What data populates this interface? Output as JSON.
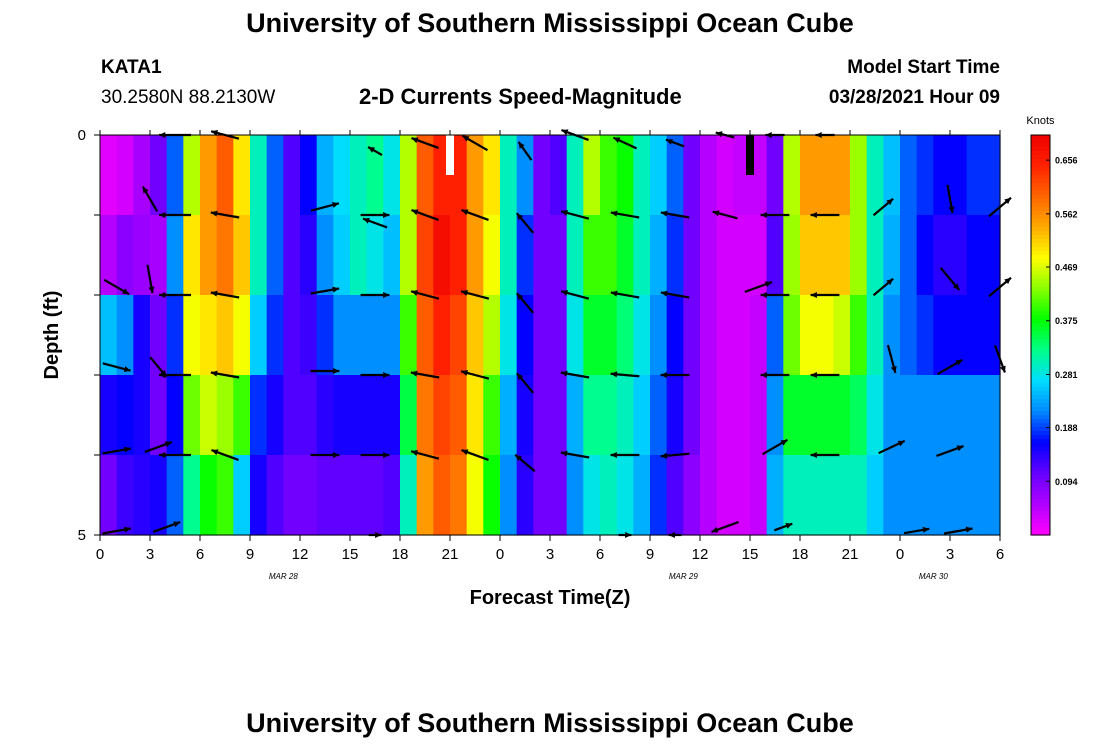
{
  "header": {
    "title": "University of Southern Mississippi Ocean Cube",
    "station": "KATA1",
    "coords": "30.2580N  88.2130W",
    "subtitle": "2-D Currents Speed-Magnitude",
    "model_label": "Model Start Time",
    "model_time": "03/28/2021 Hour 09"
  },
  "footer": {
    "title": "University of Southern Mississippi Ocean Cube"
  },
  "chart_data": {
    "type": "heatmap",
    "title": "2-D Currents Speed-Magnitude",
    "xlabel": "Forecast Time(Z)",
    "ylabel": "Depth (ft)",
    "ylim": [
      0,
      5
    ],
    "y_ticks": [
      "0",
      "5"
    ],
    "x_ticks": [
      "0",
      "3",
      "6",
      "9",
      "12",
      "15",
      "18",
      "21",
      "0",
      "3",
      "6",
      "9",
      "12",
      "15",
      "18",
      "21",
      "0",
      "3",
      "6"
    ],
    "date_labels": [
      {
        "label": "MAR 28",
        "hour_index": 11
      },
      {
        "label": "MAR 29",
        "hour_index": 35
      },
      {
        "label": "MAR 30",
        "hour_index": 50
      }
    ],
    "hours": 54,
    "depth_levels": [
      0.5,
      1.5,
      2.5,
      3.5,
      4.5
    ],
    "colorbar": {
      "unit": "Knots",
      "min": 0.0,
      "max": 0.7,
      "tick_values": [
        0.656,
        0.562,
        0.469,
        0.375,
        0.281,
        0.188,
        0.094
      ],
      "tick_labels": [
        "0.656",
        "0.562",
        "0.469",
        "0.375",
        "0.281",
        "0.188",
        "0.094"
      ],
      "colors": [
        "#ff00ff",
        "#b000ff",
        "#6600ff",
        "#0000ff",
        "#0088ff",
        "#00ddff",
        "#00ff88",
        "#00ff00",
        "#88ff00",
        "#ffff00",
        "#ffaa00",
        "#ff6600",
        "#ff2200",
        "#ee0000"
      ]
    },
    "speed_profiles": [
      [
        0.02,
        0.03,
        0.06,
        0.1,
        0.2,
        0.45,
        0.55,
        0.6,
        0.5,
        0.3,
        0.2,
        0.12,
        0.16,
        0.24,
        0.27,
        0.3,
        0.32,
        0.28,
        0.45,
        0.6,
        0.65,
        0.65,
        0.55,
        0.5,
        0.3,
        0.22,
        0.1,
        0.12,
        0.3,
        0.45,
        0.4,
        0.38,
        0.3,
        0.26,
        0.2,
        0.1,
        0.05,
        0.03,
        0.04,
        0.04,
        0.1,
        0.45,
        0.55,
        0.55,
        0.55,
        0.44,
        0.3,
        0.25,
        0.2,
        0.18,
        0.16,
        0.16,
        0.18,
        0.18
      ],
      [
        0.05,
        0.08,
        0.07,
        0.06,
        0.22,
        0.5,
        0.55,
        0.58,
        0.52,
        0.3,
        0.2,
        0.12,
        0.14,
        0.22,
        0.26,
        0.3,
        0.28,
        0.25,
        0.45,
        0.62,
        0.68,
        0.65,
        0.55,
        0.48,
        0.3,
        0.18,
        0.1,
        0.1,
        0.3,
        0.4,
        0.4,
        0.36,
        0.3,
        0.24,
        0.18,
        0.1,
        0.05,
        0.03,
        0.03,
        0.03,
        0.12,
        0.44,
        0.52,
        0.52,
        0.52,
        0.44,
        0.3,
        0.24,
        0.2,
        0.16,
        0.14,
        0.14,
        0.16,
        0.16
      ],
      [
        0.25,
        0.22,
        0.15,
        0.1,
        0.18,
        0.48,
        0.5,
        0.52,
        0.48,
        0.26,
        0.18,
        0.12,
        0.13,
        0.18,
        0.22,
        0.22,
        0.22,
        0.22,
        0.4,
        0.6,
        0.65,
        0.62,
        0.52,
        0.45,
        0.28,
        0.16,
        0.1,
        0.1,
        0.28,
        0.36,
        0.36,
        0.33,
        0.28,
        0.22,
        0.16,
        0.1,
        0.05,
        0.03,
        0.03,
        0.04,
        0.2,
        0.42,
        0.48,
        0.48,
        0.46,
        0.4,
        0.3,
        0.22,
        0.2,
        0.18,
        0.16,
        0.16,
        0.16,
        0.16
      ],
      [
        0.15,
        0.16,
        0.15,
        0.1,
        0.16,
        0.42,
        0.46,
        0.44,
        0.4,
        0.18,
        0.15,
        0.12,
        0.12,
        0.14,
        0.15,
        0.15,
        0.15,
        0.15,
        0.35,
        0.58,
        0.62,
        0.6,
        0.5,
        0.4,
        0.24,
        0.15,
        0.1,
        0.1,
        0.24,
        0.32,
        0.32,
        0.3,
        0.26,
        0.2,
        0.15,
        0.1,
        0.05,
        0.03,
        0.03,
        0.04,
        0.22,
        0.36,
        0.36,
        0.36,
        0.36,
        0.34,
        0.28,
        0.22,
        0.22,
        0.22,
        0.22,
        0.22,
        0.22,
        0.22
      ],
      [
        0.1,
        0.13,
        0.14,
        0.15,
        0.2,
        0.32,
        0.38,
        0.4,
        0.26,
        0.15,
        0.12,
        0.1,
        0.1,
        0.11,
        0.11,
        0.11,
        0.11,
        0.12,
        0.3,
        0.55,
        0.6,
        0.58,
        0.48,
        0.38,
        0.22,
        0.14,
        0.1,
        0.1,
        0.22,
        0.28,
        0.3,
        0.28,
        0.24,
        0.18,
        0.12,
        0.08,
        0.05,
        0.03,
        0.03,
        0.04,
        0.24,
        0.3,
        0.3,
        0.3,
        0.3,
        0.3,
        0.26,
        0.22,
        0.22,
        0.22,
        0.22,
        0.22,
        0.22,
        0.22
      ]
    ],
    "vectors": [
      {
        "hour": 4.5,
        "depth": 0.0,
        "dir": 180,
        "len": 1.0
      },
      {
        "hour": 7.5,
        "depth": 0.0,
        "dir": 165,
        "len": 0.9
      },
      {
        "hour": 16.5,
        "depth": 0.2,
        "dir": 150,
        "len": 0.5
      },
      {
        "hour": 19.5,
        "depth": 0.1,
        "dir": 160,
        "len": 0.9
      },
      {
        "hour": 22.5,
        "depth": 0.1,
        "dir": 150,
        "len": 0.9
      },
      {
        "hour": 25.5,
        "depth": 0.2,
        "dir": 125,
        "len": 0.7
      },
      {
        "hour": 28.5,
        "depth": 0.0,
        "dir": 160,
        "len": 0.9
      },
      {
        "hour": 31.5,
        "depth": 0.1,
        "dir": 155,
        "len": 0.8
      },
      {
        "hour": 34.5,
        "depth": 0.1,
        "dir": 160,
        "len": 0.6
      },
      {
        "hour": 37.5,
        "depth": 0.0,
        "dir": 165,
        "len": 0.6
      },
      {
        "hour": 40.5,
        "depth": 0.0,
        "dir": 180,
        "len": 0.6
      },
      {
        "hour": 43.5,
        "depth": 0.0,
        "dir": 180,
        "len": 0.6
      },
      {
        "hour": 3.0,
        "depth": 0.8,
        "dir": 120,
        "len": 0.9
      },
      {
        "hour": 4.5,
        "depth": 1.0,
        "dir": 180,
        "len": 1.0
      },
      {
        "hour": 7.5,
        "depth": 1.0,
        "dir": 170,
        "len": 0.9
      },
      {
        "hour": 13.5,
        "depth": 0.9,
        "dir": 15,
        "len": 0.9
      },
      {
        "hour": 16.5,
        "depth": 1.0,
        "dir": 0,
        "len": 0.9
      },
      {
        "hour": 16.5,
        "depth": 1.1,
        "dir": 160,
        "len": 0.8
      },
      {
        "hour": 19.5,
        "depth": 1.0,
        "dir": 160,
        "len": 0.9
      },
      {
        "hour": 22.5,
        "depth": 1.0,
        "dir": 160,
        "len": 0.9
      },
      {
        "hour": 25.5,
        "depth": 1.1,
        "dir": 130,
        "len": 0.8
      },
      {
        "hour": 28.5,
        "depth": 1.0,
        "dir": 165,
        "len": 0.9
      },
      {
        "hour": 31.5,
        "depth": 1.0,
        "dir": 170,
        "len": 0.9
      },
      {
        "hour": 34.5,
        "depth": 1.0,
        "dir": 170,
        "len": 0.9
      },
      {
        "hour": 37.5,
        "depth": 1.0,
        "dir": 165,
        "len": 0.8
      },
      {
        "hour": 40.5,
        "depth": 1.0,
        "dir": 180,
        "len": 0.9
      },
      {
        "hour": 43.5,
        "depth": 1.0,
        "dir": 180,
        "len": 0.9
      },
      {
        "hour": 47.0,
        "depth": 0.9,
        "dir": 40,
        "len": 0.8
      },
      {
        "hour": 51.0,
        "depth": 0.8,
        "dir": 280,
        "len": 0.9
      },
      {
        "hour": 54.0,
        "depth": 0.9,
        "dir": 40,
        "len": 0.9
      },
      {
        "hour": 1.0,
        "depth": 1.9,
        "dir": 330,
        "len": 0.9
      },
      {
        "hour": 3.0,
        "depth": 1.8,
        "dir": 280,
        "len": 0.9
      },
      {
        "hour": 4.5,
        "depth": 2.0,
        "dir": 180,
        "len": 1.0
      },
      {
        "hour": 7.5,
        "depth": 2.0,
        "dir": 170,
        "len": 0.9
      },
      {
        "hour": 13.5,
        "depth": 1.95,
        "dir": 10,
        "len": 0.9
      },
      {
        "hour": 16.5,
        "depth": 2.0,
        "dir": 0,
        "len": 0.9
      },
      {
        "hour": 19.5,
        "depth": 2.0,
        "dir": 165,
        "len": 0.9
      },
      {
        "hour": 22.5,
        "depth": 2.0,
        "dir": 165,
        "len": 0.9
      },
      {
        "hour": 25.5,
        "depth": 2.1,
        "dir": 130,
        "len": 0.8
      },
      {
        "hour": 28.5,
        "depth": 2.0,
        "dir": 165,
        "len": 0.9
      },
      {
        "hour": 31.5,
        "depth": 2.0,
        "dir": 170,
        "len": 0.9
      },
      {
        "hour": 34.5,
        "depth": 2.0,
        "dir": 170,
        "len": 0.9
      },
      {
        "hour": 39.5,
        "depth": 1.9,
        "dir": 20,
        "len": 0.9
      },
      {
        "hour": 40.5,
        "depth": 2.0,
        "dir": 180,
        "len": 0.9
      },
      {
        "hour": 43.5,
        "depth": 2.0,
        "dir": 180,
        "len": 0.9
      },
      {
        "hour": 47.0,
        "depth": 1.9,
        "dir": 40,
        "len": 0.8
      },
      {
        "hour": 51.0,
        "depth": 1.8,
        "dir": 310,
        "len": 0.9
      },
      {
        "hour": 54.0,
        "depth": 1.9,
        "dir": 40,
        "len": 0.9
      },
      {
        "hour": 1.0,
        "depth": 2.9,
        "dir": 345,
        "len": 0.9
      },
      {
        "hour": 3.5,
        "depth": 2.9,
        "dir": 310,
        "len": 0.8
      },
      {
        "hour": 4.5,
        "depth": 3.0,
        "dir": 180,
        "len": 1.0
      },
      {
        "hour": 7.5,
        "depth": 3.0,
        "dir": 170,
        "len": 0.9
      },
      {
        "hour": 13.5,
        "depth": 2.95,
        "dir": 0,
        "len": 0.9
      },
      {
        "hour": 16.5,
        "depth": 3.0,
        "dir": 0,
        "len": 0.9
      },
      {
        "hour": 19.5,
        "depth": 3.0,
        "dir": 170,
        "len": 0.9
      },
      {
        "hour": 22.5,
        "depth": 3.0,
        "dir": 165,
        "len": 0.9
      },
      {
        "hour": 25.5,
        "depth": 3.1,
        "dir": 130,
        "len": 0.8
      },
      {
        "hour": 28.5,
        "depth": 3.0,
        "dir": 170,
        "len": 0.9
      },
      {
        "hour": 31.5,
        "depth": 3.0,
        "dir": 175,
        "len": 0.9
      },
      {
        "hour": 34.5,
        "depth": 3.0,
        "dir": 180,
        "len": 0.9
      },
      {
        "hour": 40.5,
        "depth": 3.0,
        "dir": 180,
        "len": 0.9
      },
      {
        "hour": 43.5,
        "depth": 3.0,
        "dir": 180,
        "len": 0.9
      },
      {
        "hour": 47.5,
        "depth": 2.8,
        "dir": 285,
        "len": 0.9
      },
      {
        "hour": 51.0,
        "depth": 2.9,
        "dir": 30,
        "len": 0.9
      },
      {
        "hour": 54.0,
        "depth": 2.8,
        "dir": 290,
        "len": 0.9
      },
      {
        "hour": 1.0,
        "depth": 3.95,
        "dir": 10,
        "len": 0.9
      },
      {
        "hour": 3.5,
        "depth": 3.9,
        "dir": 20,
        "len": 0.9
      },
      {
        "hour": 4.5,
        "depth": 4.0,
        "dir": 180,
        "len": 1.0
      },
      {
        "hour": 7.5,
        "depth": 4.0,
        "dir": 160,
        "len": 0.9
      },
      {
        "hour": 13.5,
        "depth": 4.0,
        "dir": 0,
        "len": 0.9
      },
      {
        "hour": 16.5,
        "depth": 4.0,
        "dir": 0,
        "len": 0.9
      },
      {
        "hour": 19.5,
        "depth": 4.0,
        "dir": 165,
        "len": 0.9
      },
      {
        "hour": 22.5,
        "depth": 4.0,
        "dir": 160,
        "len": 0.9
      },
      {
        "hour": 25.5,
        "depth": 4.1,
        "dir": 140,
        "len": 0.8
      },
      {
        "hour": 28.5,
        "depth": 4.0,
        "dir": 170,
        "len": 0.9
      },
      {
        "hour": 31.5,
        "depth": 4.0,
        "dir": 180,
        "len": 0.9
      },
      {
        "hour": 34.5,
        "depth": 4.0,
        "dir": 185,
        "len": 0.9
      },
      {
        "hour": 40.5,
        "depth": 3.9,
        "dir": 30,
        "len": 0.9
      },
      {
        "hour": 43.5,
        "depth": 4.0,
        "dir": 180,
        "len": 0.9
      },
      {
        "hour": 47.5,
        "depth": 3.9,
        "dir": 25,
        "len": 0.9
      },
      {
        "hour": 51.0,
        "depth": 3.95,
        "dir": 20,
        "len": 0.9
      },
      {
        "hour": 1.0,
        "depth": 4.95,
        "dir": 10,
        "len": 0.9
      },
      {
        "hour": 4.0,
        "depth": 4.9,
        "dir": 20,
        "len": 0.9
      },
      {
        "hour": 16.5,
        "depth": 5.0,
        "dir": 0,
        "len": 0.4
      },
      {
        "hour": 31.5,
        "depth": 5.0,
        "dir": 0,
        "len": 0.4
      },
      {
        "hour": 34.5,
        "depth": 5.0,
        "dir": 180,
        "len": 0.4
      },
      {
        "hour": 37.5,
        "depth": 4.9,
        "dir": 200,
        "len": 0.9
      },
      {
        "hour": 41.0,
        "depth": 4.9,
        "dir": 20,
        "len": 0.6
      },
      {
        "hour": 49.0,
        "depth": 4.95,
        "dir": 10,
        "len": 0.8
      },
      {
        "hour": 51.5,
        "depth": 4.95,
        "dir": 10,
        "len": 0.9
      }
    ],
    "markers": [
      {
        "hour": 21,
        "color": "#ffffff"
      },
      {
        "hour": 39,
        "color": "#000000"
      }
    ]
  }
}
